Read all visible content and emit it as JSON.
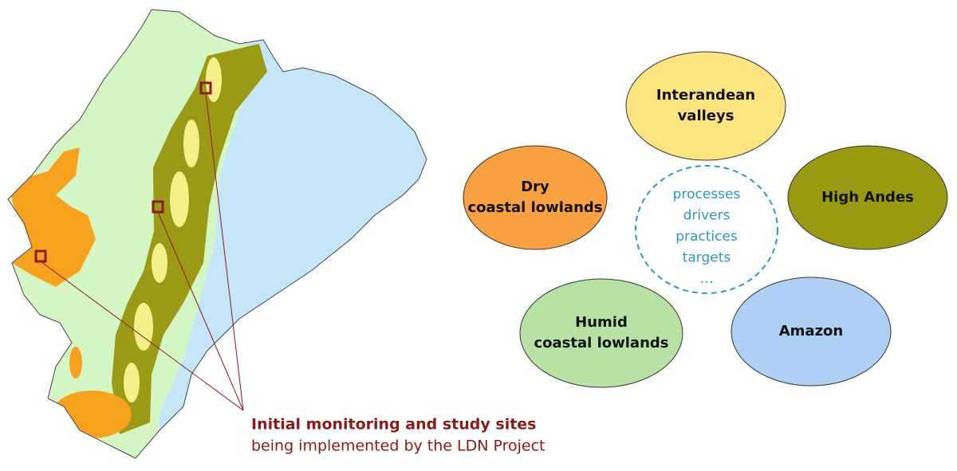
{
  "regions": [
    {
      "lines": [
        "Interandean",
        "valleys"
      ]
    },
    {
      "lines": [
        "Dry",
        "coastal lowlands"
      ]
    },
    {
      "lines": [
        "High Andes"
      ]
    },
    {
      "lines": [
        "Humid",
        "coastal lowlands"
      ]
    },
    {
      "lines": [
        "Amazon"
      ]
    }
  ],
  "center": {
    "items": [
      "processes",
      "drivers",
      "practices",
      "targets",
      "…"
    ]
  },
  "caption": {
    "title": "Initial monitoring and study sites",
    "subtitle": "being implemented by the LDN Project"
  }
}
